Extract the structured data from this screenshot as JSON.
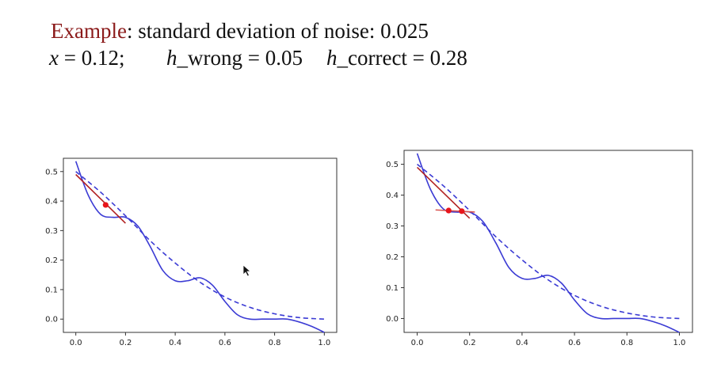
{
  "header": {
    "line1_prefix": "Example",
    "line1_rest": ": standard deviation of noise: 0.025",
    "x_var": "x",
    "x_value": " = 0.12;",
    "h_wrong_var": "h",
    "h_wrong_value": "_wrong = 0.05",
    "h_correct_var": "h",
    "h_correct_value": "_correct = 0.28"
  },
  "colors": {
    "accent": "#8b1a1a",
    "curve": "#3b3bd4",
    "tangent": "#b22222",
    "point": "#e8151b",
    "wrong_secant": "#d9534f"
  },
  "chart_data": [
    {
      "type": "line",
      "title": "",
      "xlabel": "",
      "ylabel": "",
      "xlim": [
        -0.05,
        1.05
      ],
      "ylim": [
        -0.045,
        0.545
      ],
      "xticks": [
        "0.0",
        "0.2",
        "0.4",
        "0.6",
        "0.8",
        "1.0"
      ],
      "yticks": [
        "0.0",
        "0.1",
        "0.2",
        "0.3",
        "0.4",
        "0.5"
      ],
      "grid": false,
      "series": [
        {
          "style": "solid",
          "x": [
            0.0,
            0.05,
            0.1,
            0.15,
            0.2,
            0.25,
            0.3,
            0.35,
            0.4,
            0.45,
            0.5,
            0.55,
            0.6,
            0.65,
            0.7,
            0.75,
            0.8,
            0.85,
            0.9,
            0.95,
            1.0
          ],
          "y": [
            0.535,
            0.42,
            0.355,
            0.345,
            0.345,
            0.315,
            0.245,
            0.165,
            0.13,
            0.13,
            0.14,
            0.115,
            0.06,
            0.015,
            0.0,
            0.0,
            0.0,
            0.0,
            -0.01,
            -0.025,
            -0.045
          ]
        },
        {
          "style": "dashed",
          "x": [
            0.0,
            0.1,
            0.2,
            0.3,
            0.4,
            0.5,
            0.6,
            0.7,
            0.8,
            0.9,
            1.0
          ],
          "y": [
            0.5,
            0.43,
            0.35,
            0.265,
            0.19,
            0.125,
            0.075,
            0.04,
            0.018,
            0.005,
            0.0
          ]
        },
        {
          "style": "tangent",
          "x": [
            0.0,
            0.2
          ],
          "y": [
            0.49,
            0.325
          ]
        }
      ],
      "points": [
        {
          "x": 0.12,
          "y": 0.387
        }
      ]
    },
    {
      "type": "line",
      "title": "",
      "xlabel": "",
      "ylabel": "",
      "xlim": [
        -0.05,
        1.05
      ],
      "ylim": [
        -0.045,
        0.545
      ],
      "xticks": [
        "0.0",
        "0.2",
        "0.4",
        "0.6",
        "0.8",
        "1.0"
      ],
      "yticks": [
        "0.0",
        "0.1",
        "0.2",
        "0.3",
        "0.4",
        "0.5"
      ],
      "grid": false,
      "series": [
        {
          "style": "solid",
          "x": [
            0.0,
            0.05,
            0.1,
            0.15,
            0.2,
            0.25,
            0.3,
            0.35,
            0.4,
            0.45,
            0.5,
            0.55,
            0.6,
            0.65,
            0.7,
            0.75,
            0.8,
            0.85,
            0.9,
            0.95,
            1.0
          ],
          "y": [
            0.535,
            0.42,
            0.355,
            0.345,
            0.345,
            0.315,
            0.245,
            0.165,
            0.13,
            0.13,
            0.14,
            0.115,
            0.06,
            0.015,
            0.0,
            0.0,
            0.0,
            0.0,
            -0.01,
            -0.025,
            -0.045
          ]
        },
        {
          "style": "dashed",
          "x": [
            0.0,
            0.1,
            0.2,
            0.3,
            0.4,
            0.5,
            0.6,
            0.7,
            0.8,
            0.9,
            1.0
          ],
          "y": [
            0.5,
            0.43,
            0.35,
            0.265,
            0.19,
            0.125,
            0.075,
            0.04,
            0.018,
            0.005,
            0.0
          ]
        },
        {
          "style": "tangent",
          "x": [
            0.0,
            0.2
          ],
          "y": [
            0.49,
            0.325
          ]
        },
        {
          "style": "secant",
          "x": [
            0.07,
            0.22
          ],
          "y": [
            0.352,
            0.345
          ]
        }
      ],
      "points": [
        {
          "x": 0.12,
          "y": 0.35
        },
        {
          "x": 0.17,
          "y": 0.348
        }
      ]
    }
  ]
}
